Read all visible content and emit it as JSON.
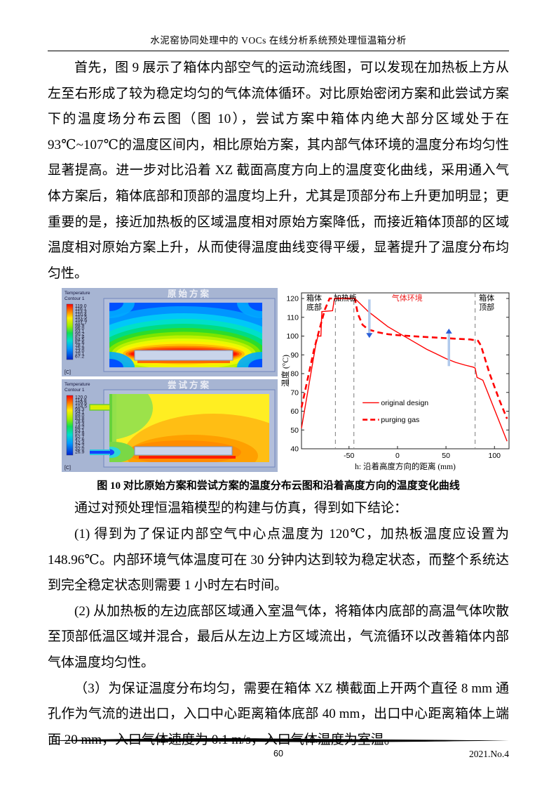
{
  "header": {
    "title": "水泥窑协同处理中的 VOCs 在线分析系统预处理恒温箱分析"
  },
  "paragraphs": {
    "p1": "首先，图 9 展示了箱体内部空气的运动流线图，可以发现在加热板上方从左至右形成了较为稳定均匀的气体流体循环。对比原始密闭方案和此尝试方案下的温度场分布云图（图 10），尝试方案中箱体内绝大部分区域处于在 93℃~107℃的温度区间内，相比原始方案，其内部气体环境的温度分布均匀性显著提高。进一步对比沿着 XZ 截面高度方向上的温度变化曲线，采用通入气体方案后，箱体底部和顶部的温度均上升，尤其是顶部分布上升更加明显；更重要的是，接近加热板的区域温度相对原始方案降低，而接近箱体顶部的区域温度相对原始方案上升，从而使得温度曲线变得平缓，显著提升了温度分布均匀性。",
    "intro": "通过对预处理恒温箱模型的构建与仿真，得到如下结论：",
    "item1": "(1) 得到为了保证内部空气中心点温度为 120℃，加热板温度应设置为 148.96℃。内部环境气体温度可在 30 分钟内达到较为稳定状态，而整个系统达到完全稳定状态则需要 1 小时左右时间。",
    "item2": "(2) 从加热板的左边底部区域通入室温气体，将箱体内底部的高温气体吹散至顶部低温区域并混合，最后从左边上方区域流出，气流循环以改善箱体内部气体温度均匀性。",
    "item3": "（3）为保证温度分布均匀，需要在箱体 XZ 横截面上开两个直径 8 mm 通孔作为气流的进出口，入口中心距离箱体底部 40 mm，出口中心距离箱体上端面 20 mm，入口气体速度为 0.1 m/s，入口气体温度为室温。"
  },
  "figure": {
    "caption": "图 10 对比原始方案和尝试方案的温度分布云图和沿着高度方向的温度变化曲线",
    "contour1": {
      "title": "原始方案",
      "legend_title": [
        "Temperature",
        "Contour 1"
      ],
      "unit": "[C]",
      "values": [
        "119.0",
        "116.1",
        "113.3",
        "110.4",
        "107.5",
        "104.6",
        "101.7",
        "98.9",
        "96.0",
        "93.1",
        "90.2",
        "87.4",
        "84.5",
        "81.6",
        "78.7",
        "75.9",
        "73.0",
        "70.1",
        "67.2"
      ]
    },
    "contour2": {
      "title": "尝试方案",
      "legend_title": [
        "Temperature",
        "Contour 1"
      ],
      "unit": "[C]",
      "values": [
        "120.0",
        "114.8",
        "109.6",
        "104.5",
        "99.3",
        "94.1",
        "89.0",
        "83.8",
        "78.6",
        "73.4",
        "68.2",
        "63.1",
        "57.9",
        "52.7",
        "47.6",
        "42.4",
        "37.2",
        "32.0",
        "26.9"
      ]
    }
  },
  "chart_data": {
    "type": "line",
    "xlabel": "h: 沿着高度方向的距离 (mm)",
    "ylabel": "温度 (°C)",
    "xlim": [
      -99,
      115
    ],
    "ylim": [
      40,
      123
    ],
    "xticks": [
      -50,
      0,
      50,
      100
    ],
    "yticks": [
      40,
      50,
      60,
      70,
      80,
      90,
      100,
      110,
      120
    ],
    "vlines": [
      -64,
      -45,
      80
    ],
    "region_labels": [
      {
        "text": "箱体\n底部",
        "x": -86,
        "color": "#000000"
      },
      {
        "text": "加热板",
        "x": -54,
        "color": "#000000"
      },
      {
        "text": "气体环境",
        "x": 10,
        "color": "#ee2222"
      },
      {
        "text": "箱体\n顶部",
        "x": 92,
        "color": "#000000"
      }
    ],
    "series": [
      {
        "name": "original design",
        "style": "solid",
        "color": "#ff0000",
        "points": [
          [
            -99,
            51
          ],
          [
            -84,
            96
          ],
          [
            -82,
            100
          ],
          [
            -79,
            100
          ],
          [
            -78,
            113
          ],
          [
            -67,
            113.5
          ],
          [
            -65,
            120
          ],
          [
            -44,
            120
          ],
          [
            -40,
            118
          ],
          [
            -30,
            113
          ],
          [
            -20,
            109
          ],
          [
            -10,
            105
          ],
          [
            0,
            102
          ],
          [
            10,
            99
          ],
          [
            20,
            96
          ],
          [
            30,
            93
          ],
          [
            40,
            90.5
          ],
          [
            50,
            88
          ],
          [
            60,
            86
          ],
          [
            70,
            84.5
          ],
          [
            78,
            83.5
          ],
          [
            80,
            83
          ],
          [
            82,
            78
          ],
          [
            88,
            76.5
          ],
          [
            113,
            44
          ]
        ]
      },
      {
        "name": "purging gas",
        "style": "dashed",
        "color": "#ff0000",
        "points": [
          [
            -99,
            62
          ],
          [
            -86,
            93
          ],
          [
            -75,
            114
          ],
          [
            -70,
            120
          ],
          [
            -44,
            120
          ],
          [
            -41,
            112
          ],
          [
            -36,
            106
          ],
          [
            -30,
            103.5
          ],
          [
            -20,
            102
          ],
          [
            -10,
            101
          ],
          [
            0,
            100.5
          ],
          [
            20,
            99.8
          ],
          [
            40,
            99.2
          ],
          [
            60,
            98.6
          ],
          [
            75,
            98.2
          ],
          [
            83,
            97.5
          ],
          [
            86,
            95
          ],
          [
            95,
            80
          ],
          [
            105,
            66
          ],
          [
            113,
            56
          ]
        ]
      }
    ],
    "arrows": [
      {
        "x": -29,
        "y1": 119.5,
        "y2": 99,
        "dir": "down"
      },
      {
        "x": 53,
        "y1": 84,
        "y2": 104,
        "dir": "up"
      }
    ],
    "legend": {
      "entries": [
        "original design",
        "purging gas"
      ]
    }
  },
  "footer": {
    "page_number": "60",
    "issue": "2021.No.4"
  },
  "colors": {
    "panel_blue": "#a7b5d3",
    "frame_fill": "#b3bfdb",
    "frame_border": "#7186bd",
    "accent_red": "#ff0000",
    "arrow_shaft": "#a9c5ea",
    "arrow_head": "#2b5fd9"
  }
}
